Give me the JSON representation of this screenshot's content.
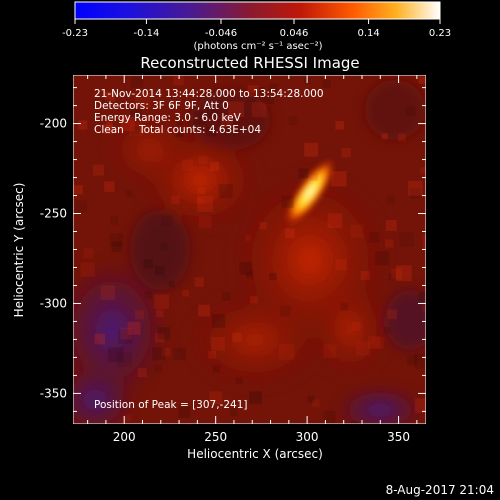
{
  "colorbar": {
    "ticks": [
      "-0.23",
      "-0.14",
      "-0.046",
      "0.046",
      "0.14",
      "0.23"
    ],
    "units": "(photons cm⁻² s⁻¹ asec⁻²)",
    "range": [
      -0.23,
      0.23
    ]
  },
  "title": "Reconstructed RHESSI Image",
  "info": {
    "time_range": "21-Nov-2014 13:44:28.000 to 13:54:28.000",
    "detectors": "Detectors: 3F 6F 9F, Att 0",
    "energy": "Energy Range: 3.0 - 6.0 keV",
    "algorithm": "Clean",
    "counts": "Total counts: 4.63E+04"
  },
  "peak_label": "Position of Peak = [307,-241]",
  "axes": {
    "xlabel": "Heliocentric X (arcsec)",
    "ylabel": "Heliocentric Y (arcsec)",
    "x_ticks": [
      "200",
      "250",
      "300",
      "350"
    ],
    "y_ticks": [
      "-200",
      "-250",
      "-300",
      "-350"
    ],
    "x_range": [
      172,
      365
    ],
    "y_range": [
      -367,
      -173
    ]
  },
  "footer_date": "8-Aug-2017 21:04",
  "colors": {
    "background": "#000000",
    "foreground": "#ffffff"
  }
}
